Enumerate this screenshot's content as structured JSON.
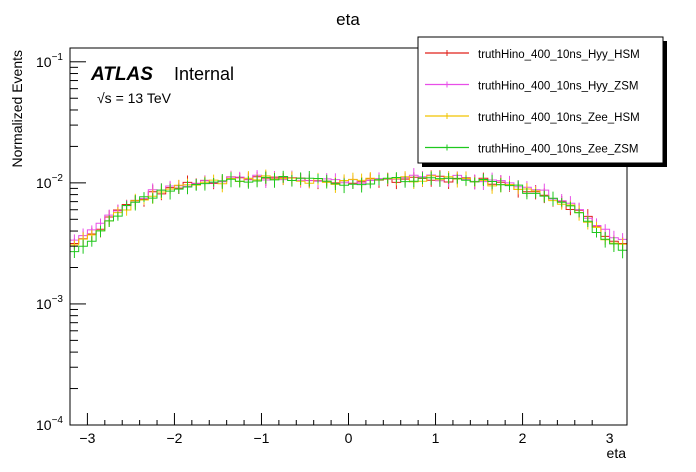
{
  "chart_data": {
    "type": "line",
    "title": "eta",
    "xlabel": "eta",
    "ylabel": "Normalized Events",
    "xlim": [
      -3.2,
      3.2
    ],
    "ylim": [
      0.0001,
      0.13
    ],
    "yscale": "log",
    "x_ticks": [
      "−3",
      "−2",
      "−1",
      "0",
      "1",
      "2",
      "3"
    ],
    "y_ticks": [
      {
        "base": "10",
        "exp": "−1"
      },
      {
        "base": "10",
        "exp": "−2"
      },
      {
        "base": "10",
        "exp": "−3"
      },
      {
        "base": "10",
        "exp": "−4"
      }
    ],
    "histogram": "step",
    "error_bars": true,
    "legend_position": "top-right",
    "annotations": {
      "experiment": "ATLAS",
      "status": "Internal",
      "sqrt_symbol": "√s",
      "energy": " = 13 TeV"
    },
    "bins": {
      "n": 64,
      "start": -3.2,
      "end": 3.2
    },
    "series": [
      {
        "name": "truthHino_400_10ns_Hyy_HSM",
        "color": "#e0201a",
        "values": [
          0.0031,
          0.0034,
          0.0037,
          0.0043,
          0.0051,
          0.0058,
          0.0064,
          0.0071,
          0.0076,
          0.0081,
          0.0085,
          0.0089,
          0.0093,
          0.0096,
          0.0099,
          0.0101,
          0.0103,
          0.0105,
          0.0106,
          0.0107,
          0.0108,
          0.0108,
          0.0109,
          0.0109,
          0.0109,
          0.0108,
          0.0107,
          0.0106,
          0.0105,
          0.0104,
          0.0103,
          0.0102,
          0.0102,
          0.0103,
          0.0104,
          0.0105,
          0.0106,
          0.0107,
          0.0108,
          0.0109,
          0.0109,
          0.0109,
          0.0108,
          0.0108,
          0.0107,
          0.0106,
          0.0105,
          0.0103,
          0.0101,
          0.0099,
          0.0096,
          0.0093,
          0.0089,
          0.0085,
          0.0081,
          0.0076,
          0.0071,
          0.0064,
          0.0058,
          0.0051,
          0.0043,
          0.0037,
          0.0034,
          0.0031
        ]
      },
      {
        "name": "truthHino_400_10ns_Hyy_ZSM",
        "color": "#e84ee8",
        "values": [
          0.0033,
          0.0036,
          0.004,
          0.0046,
          0.0053,
          0.006,
          0.0066,
          0.0073,
          0.0078,
          0.0083,
          0.0087,
          0.0091,
          0.0095,
          0.0098,
          0.0101,
          0.0103,
          0.0105,
          0.0107,
          0.0108,
          0.0109,
          0.011,
          0.011,
          0.0111,
          0.0111,
          0.011,
          0.0109,
          0.0108,
          0.0107,
          0.0106,
          0.0105,
          0.0104,
          0.0103,
          0.0103,
          0.0104,
          0.0105,
          0.0106,
          0.0107,
          0.0108,
          0.0109,
          0.011,
          0.0111,
          0.0111,
          0.011,
          0.011,
          0.0109,
          0.0108,
          0.0107,
          0.0105,
          0.0103,
          0.0101,
          0.0098,
          0.0095,
          0.0091,
          0.0087,
          0.0083,
          0.0078,
          0.0073,
          0.0066,
          0.006,
          0.0053,
          0.0046,
          0.004,
          0.0036,
          0.0033
        ]
      },
      {
        "name": "truthHino_400_10ns_Zee_HSM",
        "color": "#f2c400",
        "values": [
          0.003,
          0.0033,
          0.0036,
          0.0042,
          0.005,
          0.0057,
          0.0063,
          0.007,
          0.0075,
          0.008,
          0.0084,
          0.0088,
          0.0092,
          0.0095,
          0.0098,
          0.01,
          0.0102,
          0.0104,
          0.0105,
          0.0106,
          0.0107,
          0.0107,
          0.0108,
          0.0108,
          0.0108,
          0.0107,
          0.0106,
          0.0105,
          0.0104,
          0.0103,
          0.0102,
          0.0101,
          0.0101,
          0.0102,
          0.0103,
          0.0104,
          0.0105,
          0.0106,
          0.0107,
          0.0108,
          0.0108,
          0.0108,
          0.0107,
          0.0107,
          0.0106,
          0.0105,
          0.0104,
          0.0102,
          0.01,
          0.0098,
          0.0095,
          0.0092,
          0.0088,
          0.0084,
          0.008,
          0.0075,
          0.007,
          0.0063,
          0.0057,
          0.005,
          0.0042,
          0.0036,
          0.0033,
          0.003
        ]
      },
      {
        "name": "truthHino_400_10ns_Zee_ZSM",
        "color": "#1ec81e",
        "values": [
          0.0028,
          0.0031,
          0.0035,
          0.0041,
          0.0049,
          0.0056,
          0.0062,
          0.0069,
          0.0074,
          0.0079,
          0.0083,
          0.0087,
          0.0091,
          0.0094,
          0.0097,
          0.0099,
          0.0101,
          0.0103,
          0.0104,
          0.0105,
          0.0106,
          0.0106,
          0.0107,
          0.0107,
          0.0107,
          0.0106,
          0.0105,
          0.0104,
          0.0103,
          0.0102,
          0.0101,
          0.01,
          0.01,
          0.0101,
          0.0102,
          0.0103,
          0.0104,
          0.0105,
          0.0106,
          0.0107,
          0.0107,
          0.0107,
          0.0106,
          0.0106,
          0.0105,
          0.0104,
          0.0103,
          0.0101,
          0.0099,
          0.0097,
          0.0094,
          0.0091,
          0.0087,
          0.0083,
          0.0079,
          0.0074,
          0.0069,
          0.0062,
          0.0056,
          0.0049,
          0.0041,
          0.0035,
          0.0031,
          0.0028
        ]
      }
    ]
  }
}
